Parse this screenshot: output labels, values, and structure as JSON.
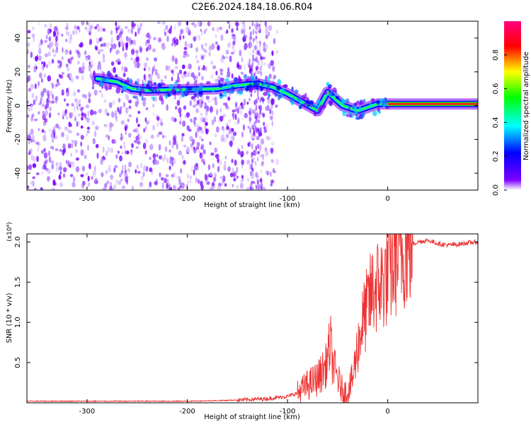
{
  "title": "C2E6.2024.184.18.06.R04",
  "chart_data": [
    {
      "type": "heatmap",
      "xlabel": "Height of straight line (km)",
      "ylabel": "Frequency (Hz)",
      "xlim": [
        -360,
        90
      ],
      "ylim": [
        -50,
        50
      ],
      "xticks": [
        -300,
        -200,
        -100,
        0
      ],
      "yticks": [
        -40,
        -20,
        0,
        20,
        40
      ],
      "colorbar": {
        "label": "Normalized spectral amplitude",
        "range": [
          0.0,
          1.0
        ],
        "ticks": [
          "0.0",
          "0.2",
          "0.4",
          "0.6",
          "0.8"
        ],
        "colors": [
          "#ffffff",
          "#7b00ff",
          "#0000ff",
          "#00ffff",
          "#00ff00",
          "#ffff00",
          "#ff0000",
          "#ff0080"
        ]
      },
      "ridge": [
        {
          "x": -290,
          "y": 16
        },
        {
          "x": -270,
          "y": 14
        },
        {
          "x": -255,
          "y": 10
        },
        {
          "x": -240,
          "y": 9
        },
        {
          "x": -170,
          "y": 10
        },
        {
          "x": -150,
          "y": 12
        },
        {
          "x": -130,
          "y": 13
        },
        {
          "x": -115,
          "y": 11
        },
        {
          "x": -100,
          "y": 7
        },
        {
          "x": -85,
          "y": 2
        },
        {
          "x": -70,
          "y": -3
        },
        {
          "x": -60,
          "y": 8
        },
        {
          "x": -45,
          "y": 0
        },
        {
          "x": -30,
          "y": -3
        },
        {
          "x": -20,
          "y": -1
        },
        {
          "x": -10,
          "y": 1
        },
        {
          "x": 0,
          "y": 1
        },
        {
          "x": 20,
          "y": 1
        },
        {
          "x": 50,
          "y": 1
        },
        {
          "x": 90,
          "y": 1
        }
      ],
      "noise_region": {
        "xmin": -360,
        "xmax": -120
      }
    },
    {
      "type": "line",
      "xlabel": "Height of straight line (km)",
      "ylabel": "SNR (10 * v/v)",
      "y_scale_label": "(x10⁴)",
      "xlim": [
        -360,
        90
      ],
      "ylim": [
        0,
        2.1
      ],
      "xticks": [
        -300,
        -200,
        -100,
        0
      ],
      "yticks": [
        0.5,
        1.0,
        1.5,
        2.0
      ],
      "series": [
        {
          "color": "#ee3333",
          "points": [
            [
              -360,
              0.02
            ],
            [
              -300,
              0.02
            ],
            [
              -250,
              0.02
            ],
            [
              -200,
              0.02
            ],
            [
              -160,
              0.03
            ],
            [
              -140,
              0.04
            ],
            [
              -120,
              0.05
            ],
            [
              -100,
              0.08
            ],
            [
              -90,
              0.12
            ],
            [
              -80,
              0.22
            ],
            [
              -70,
              0.3
            ],
            [
              -62,
              0.45
            ],
            [
              -57,
              0.75
            ],
            [
              -55,
              0.5
            ],
            [
              -50,
              0.3
            ],
            [
              -45,
              0.15
            ],
            [
              -40,
              0.12
            ],
            [
              -35,
              0.3
            ],
            [
              -30,
              0.7
            ],
            [
              -25,
              1.0
            ],
            [
              -20,
              1.2
            ],
            [
              -15,
              1.4
            ],
            [
              -10,
              1.45
            ],
            [
              -5,
              1.5
            ],
            [
              0,
              1.6
            ],
            [
              5,
              1.7
            ],
            [
              10,
              1.85
            ],
            [
              15,
              1.9
            ],
            [
              20,
              1.95
            ],
            [
              30,
              2.0
            ],
            [
              40,
              2.02
            ],
            [
              50,
              1.98
            ],
            [
              60,
              1.96
            ],
            [
              70,
              1.97
            ],
            [
              80,
              1.99
            ],
            [
              90,
              2.0
            ]
          ]
        }
      ]
    }
  ]
}
